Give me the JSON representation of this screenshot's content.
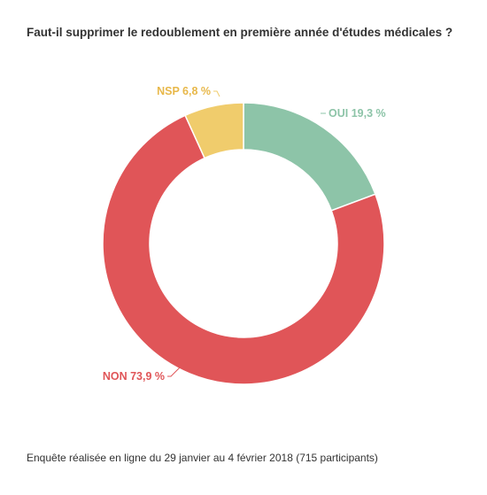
{
  "chart_data": {
    "type": "pie",
    "title": "Faut-il supprimer le redoublement en première année d'études médicales ?",
    "footnote": "Enquête réalisée en ligne du 29 janvier au 4 février 2018  (715 participants)",
    "slices": [
      {
        "name": "OUI",
        "value": 19.3,
        "label": "OUI 19,3 %",
        "color": "#8dc4a8"
      },
      {
        "name": "NON",
        "value": 73.9,
        "label": "NON 73,9 %",
        "color": "#e05558"
      },
      {
        "name": "NSP",
        "value": 6.8,
        "label": "NSP 6,8 %",
        "color": "#f0cc6c"
      }
    ],
    "legend": "none"
  }
}
